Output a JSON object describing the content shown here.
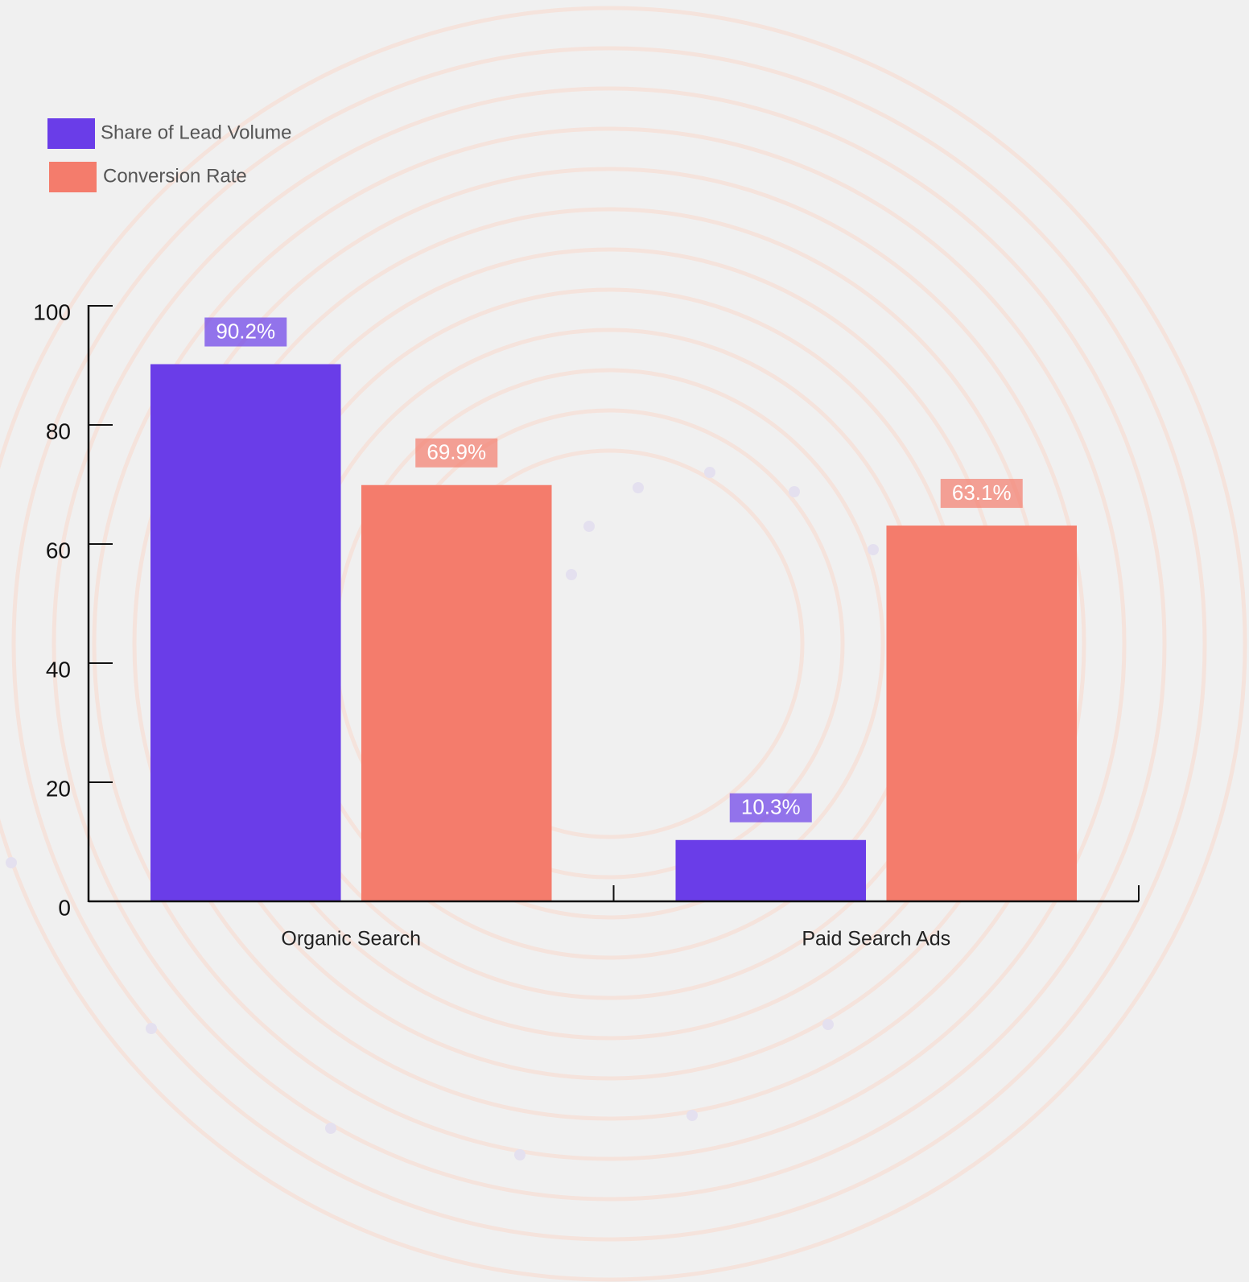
{
  "chart_data": {
    "type": "bar",
    "categories": [
      "Organic Search",
      "Paid Search Ads"
    ],
    "series": [
      {
        "name": "Share of Lead Volume",
        "color": "#6a3de8",
        "values": [
          90.2,
          10.3
        ],
        "value_labels": [
          "90.2%",
          "10.3%"
        ]
      },
      {
        "name": "Conversion Rate",
        "color": "#f47c6c",
        "values": [
          69.9,
          63.1
        ],
        "value_labels": [
          "69.9%",
          "63.1%"
        ]
      }
    ],
    "ylim": [
      0,
      100
    ],
    "yticks": [
      0,
      20,
      40,
      60,
      80,
      100
    ],
    "legend": "top-left"
  }
}
